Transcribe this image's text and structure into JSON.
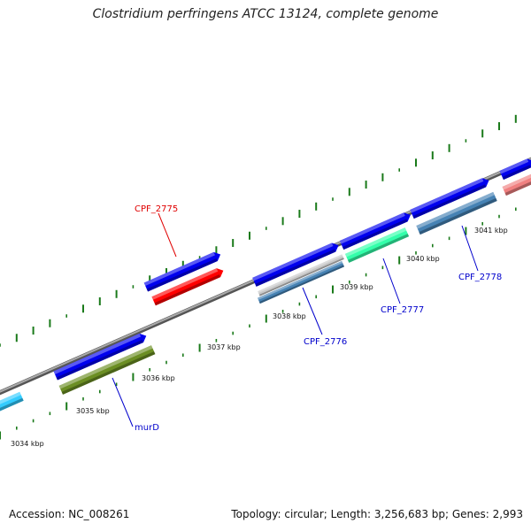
{
  "title": "Clostridium perfringens ATCC 13124, complete genome",
  "footer": {
    "accession": "Accession: NC_008261",
    "summary": "Topology: circular; Length: 3,256,683 bp; Genes: 2,993"
  },
  "ticks": [
    "3034 kbp",
    "3035 kbp",
    "3036 kbp",
    "3037 kbp",
    "3038 kbp",
    "3039 kbp",
    "3040 kbp",
    "3041 kbp"
  ],
  "gene_labels": [
    {
      "text": "CPF_2775",
      "color": "#e00000"
    },
    {
      "text": "murD",
      "color": "#0000cc"
    },
    {
      "text": "CPF_2776",
      "color": "#0000cc"
    },
    {
      "text": "CPF_2777",
      "color": "#0000cc"
    },
    {
      "text": "CPF_2778",
      "color": "#0000cc"
    }
  ],
  "colors": {
    "backbone": "#888888",
    "ticks": "#1a7a1a",
    "cds_forward": "#0000ee",
    "cog_red": "#ff0000",
    "cog_olive": "#6b8e23",
    "cog_steelblue": "#4682b4",
    "cog_aquamarine": "#33ffaa",
    "cog_cyan": "#33ccff",
    "cog_pink": "#f08080"
  }
}
